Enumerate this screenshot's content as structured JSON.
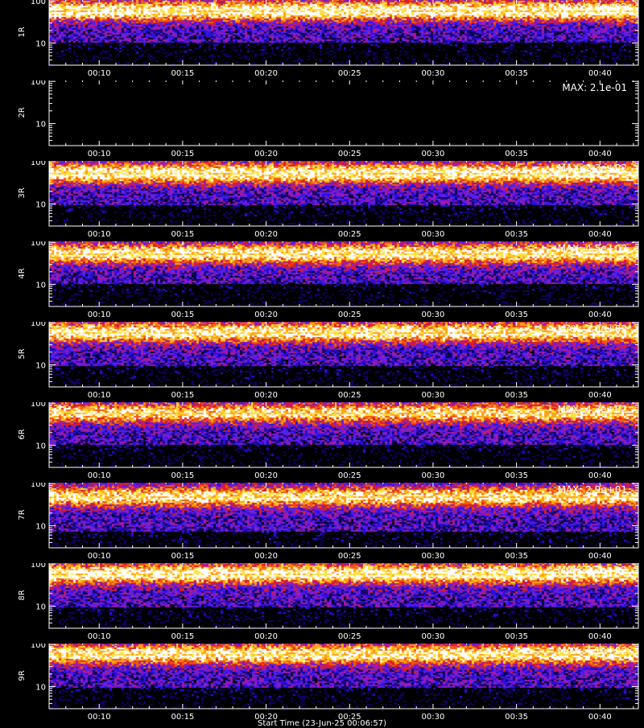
{
  "chart_data": {
    "type": "heatmap",
    "description_of_panels": "stacked spectrogram panels",
    "x_ticks": [
      "00:10",
      "00:15",
      "00:20",
      "00:25",
      "00:30",
      "00:35",
      "00:40"
    ],
    "x_range_minutes": [
      7,
      42.3
    ],
    "y_ticks": [
      "100",
      "10"
    ],
    "y_scale": "log",
    "y_range": [
      3,
      110
    ],
    "colormap": [
      "#000000",
      "#120066",
      "#2a10d8",
      "#5a1ee6",
      "#a01aa8",
      "#d81e28",
      "#f05a10",
      "#ffa018",
      "#ffdf3c",
      "#ffffff"
    ],
    "panels": [
      {
        "label": "1R",
        "max": "MAX: 2.7e+02",
        "band_center": 60,
        "band_strength": 1.0,
        "floor": 10,
        "spikes": []
      },
      {
        "label": "2R",
        "max": "MAX: 2.1e-01",
        "band_center": 60,
        "band_strength": 0.0,
        "floor": 10,
        "spikes": []
      },
      {
        "label": "3R",
        "max": "MAX: 2.3e+02",
        "band_center": 55,
        "band_strength": 1.0,
        "floor": 9,
        "spikes": []
      },
      {
        "label": "4R",
        "max": "MAX: 4.5e+02",
        "band_center": 55,
        "band_strength": 0.95,
        "floor": 10,
        "spikes": []
      },
      {
        "label": "5R",
        "max": "MAX: 3.0e+02",
        "band_center": 60,
        "band_strength": 0.95,
        "floor": 9,
        "spikes": []
      },
      {
        "label": "6R",
        "max": "MAX: 4.3e+02",
        "band_center": 60,
        "band_strength": 0.85,
        "floor": 10,
        "spikes": [
          14.6,
          19.1,
          24.1
        ]
      },
      {
        "label": "7R",
        "max": "MAX: 2.9e+01",
        "band_center": 50,
        "band_strength": 0.9,
        "floor": 7,
        "spikes": []
      },
      {
        "label": "8R",
        "max": "MAX: 3.2e+02",
        "band_center": 60,
        "band_strength": 1.0,
        "floor": 9,
        "spikes": []
      },
      {
        "label": "9R",
        "max": "MAX: 4.1e+02",
        "band_center": 60,
        "band_strength": 0.95,
        "floor": 9,
        "spikes": [
          14.6,
          19.1
        ]
      }
    ]
  },
  "x_axis_title": "Start Time (23-Jun-25 00:06:57)"
}
